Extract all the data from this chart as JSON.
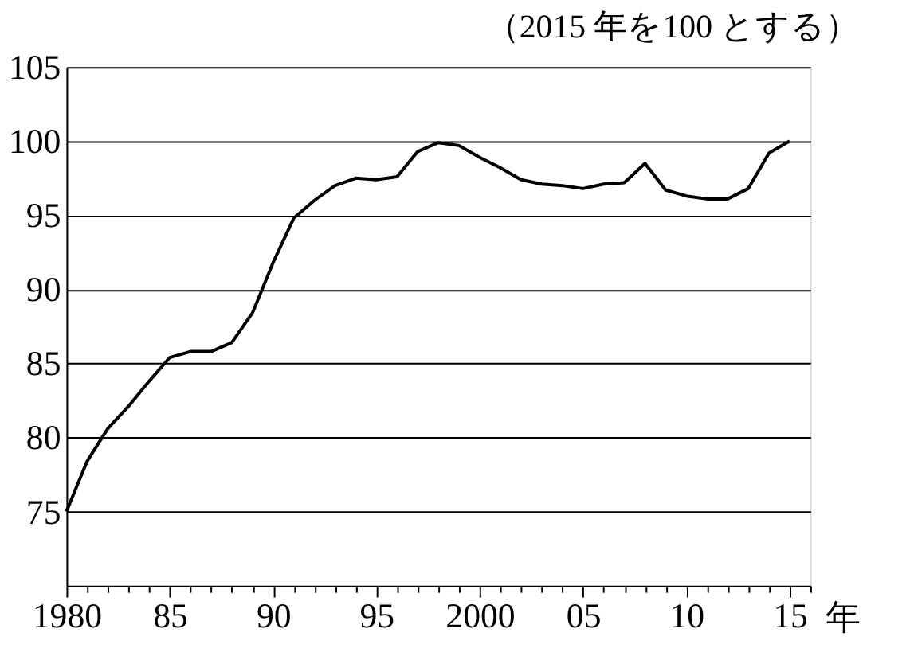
{
  "chart_data": {
    "type": "line",
    "title": "（2015 年を100 とする）",
    "xlabel": "年",
    "x": [
      1980,
      1981,
      1982,
      1983,
      1984,
      1985,
      1986,
      1987,
      1988,
      1989,
      1990,
      1991,
      1992,
      1993,
      1994,
      1995,
      1996,
      1997,
      1998,
      1999,
      2000,
      2001,
      2002,
      2003,
      2004,
      2005,
      2006,
      2007,
      2008,
      2009,
      2010,
      2011,
      2012,
      2013,
      2014,
      2015
    ],
    "series": [
      {
        "color": "#000000",
        "values": [
          75.0,
          78.4,
          80.6,
          82.1,
          83.8,
          85.4,
          85.8,
          85.8,
          86.4,
          88.4,
          91.8,
          94.8,
          96.0,
          97.0,
          97.5,
          97.4,
          97.6,
          99.3,
          99.9,
          99.7,
          98.9,
          98.2,
          97.4,
          97.1,
          97.0,
          96.8,
          97.1,
          97.2,
          98.5,
          96.7,
          96.3,
          96.1,
          96.1,
          96.8,
          99.2,
          100.0
        ]
      }
    ],
    "xlim": [
      1980,
      2016
    ],
    "xticks": [
      1980,
      {
        "value": 1981,
        "label": null
      },
      {
        "value": 1982,
        "label": null
      },
      {
        "value": 1983,
        "label": null
      },
      {
        "value": 1984,
        "label": null
      },
      {
        "value": 1985,
        "label": "85"
      },
      {
        "value": 1986,
        "label": null
      },
      {
        "value": 1987,
        "label": null
      },
      {
        "value": 1988,
        "label": null
      },
      {
        "value": 1989,
        "label": null
      },
      {
        "value": 1990,
        "label": "90"
      },
      {
        "value": 1991,
        "label": null
      },
      {
        "value": 1992,
        "label": null
      },
      {
        "value": 1993,
        "label": null
      },
      {
        "value": 1994,
        "label": null
      },
      {
        "value": 1995,
        "label": "95"
      },
      {
        "value": 1996,
        "label": null
      },
      {
        "value": 1997,
        "label": null
      },
      {
        "value": 1998,
        "label": null
      },
      {
        "value": 1999,
        "label": null
      },
      2000,
      {
        "value": 2001,
        "label": null
      },
      {
        "value": 2002,
        "label": null
      },
      {
        "value": 2003,
        "label": null
      },
      {
        "value": 2004,
        "label": null
      },
      {
        "value": 2005,
        "label": "05"
      },
      {
        "value": 2006,
        "label": null
      },
      {
        "value": 2007,
        "label": null
      },
      {
        "value": 2008,
        "label": null
      },
      {
        "value": 2009,
        "label": null
      },
      {
        "value": 2010,
        "label": "10"
      },
      {
        "value": 2011,
        "label": null
      },
      {
        "value": 2012,
        "label": null
      },
      {
        "value": 2013,
        "label": null
      },
      {
        "value": 2014,
        "label": null
      },
      {
        "value": 2015,
        "label": "15"
      },
      {
        "value": 2016,
        "label": null
      }
    ],
    "ylim": [
      70,
      105
    ],
    "yticks": [
      75,
      80,
      85,
      90,
      95,
      100,
      105
    ],
    "grid": "y",
    "legend": false,
    "marker": "none",
    "line_style": "solid"
  }
}
